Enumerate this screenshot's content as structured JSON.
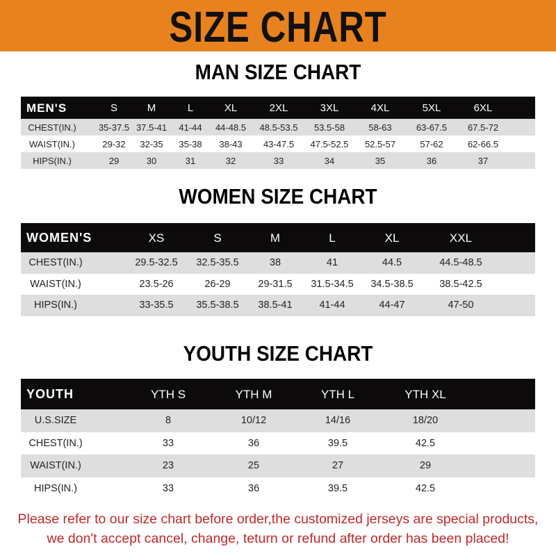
{
  "banner_title": "SIZE CHART",
  "colors": {
    "banner": "#e8821e",
    "header_row": "#0c0a0a",
    "note": "#c0282a"
  },
  "men": {
    "title": "MAN SIZE CHART",
    "header": [
      "MEN'S",
      "S",
      "M",
      "L",
      "XL",
      "2XL",
      "3XL",
      "4XL",
      "5XL",
      "6XL"
    ],
    "rows": [
      [
        "CHEST(IN.)",
        "35-37.5",
        "37.5-41",
        "41-44",
        "44-48.5",
        "48.5-53.5",
        "53.5-58",
        "58-63",
        "63-67.5",
        "67.5-72"
      ],
      [
        "WAIST(IN.)",
        "29-32",
        "32-35",
        "35-38",
        "38-43",
        "43-47.5",
        "47.5-52.5",
        "52.5-57",
        "57-62",
        "62-66.5"
      ],
      [
        "HIPS(IN.)",
        "29",
        "30",
        "31",
        "32",
        "33",
        "34",
        "35",
        "36",
        "37"
      ]
    ]
  },
  "women": {
    "title": "WOMEN SIZE CHART",
    "header": [
      "WOMEN'S",
      "XS",
      "S",
      "M",
      "L",
      "XL",
      "XXL"
    ],
    "rows": [
      [
        "CHEST(IN.)",
        "29.5-32.5",
        "32.5-35.5",
        "38",
        "41",
        "44.5",
        "44.5-48.5"
      ],
      [
        "WAIST(IN.)",
        "23.5-26",
        "26-29",
        "29-31.5",
        "31.5-34.5",
        "34.5-38.5",
        "38.5-42.5"
      ],
      [
        "HIPS(IN.)",
        "33-35.5",
        "35.5-38.5",
        "38.5-41",
        "41-44",
        "44-47",
        "47-50"
      ]
    ]
  },
  "youth": {
    "title": "YOUTH SIZE CHART",
    "header": [
      "YOUTH",
      "YTH S",
      "YTH M",
      "YTH L",
      "YTH XL"
    ],
    "rows": [
      [
        "U.S.SIZE",
        "8",
        "10/12",
        "14/16",
        "18/20"
      ],
      [
        "CHEST(IN.)",
        "33",
        "36",
        "39.5",
        "42.5"
      ],
      [
        "WAIST(IN.)",
        "23",
        "25",
        "27",
        "29"
      ],
      [
        "HIPS(IN.)",
        "33",
        "36",
        "39.5",
        "42.5"
      ]
    ]
  },
  "note": {
    "line1": "Please refer to our size chart before order,the customized jerseys are special products,",
    "line2": "we don't accept cancel, change, teturn or refund after order has been placed!"
  }
}
